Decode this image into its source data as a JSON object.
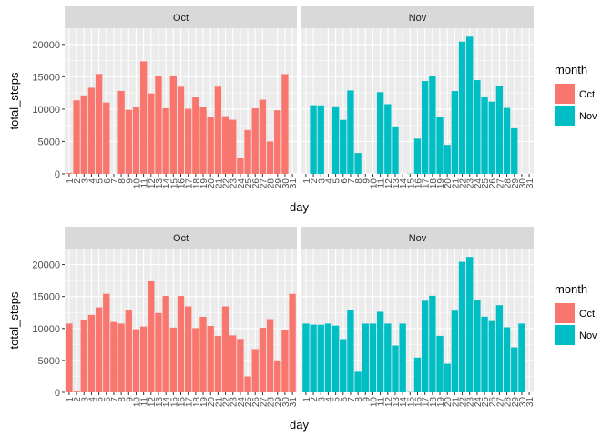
{
  "colors": {
    "oct": "#F8766D",
    "nov": "#00BFC4",
    "panel_bg": "#EBEBEB",
    "strip_bg": "#D9D9D9",
    "grid": "#FFFFFF",
    "text": "#4D4D4D",
    "title_text": "#000000"
  },
  "chart_data": [
    {
      "type": "bar",
      "facets": [
        "Oct",
        "Nov"
      ],
      "xlabel": "day",
      "ylabel": "total_steps",
      "ylim": [
        0,
        22500
      ],
      "yticks": [
        0,
        5000,
        10000,
        15000,
        20000
      ],
      "ytick_labels": [
        "0",
        "5000",
        "10000",
        "15000",
        "20000"
      ],
      "x": [
        1,
        2,
        3,
        4,
        5,
        6,
        7,
        8,
        9,
        10,
        11,
        12,
        13,
        14,
        15,
        16,
        17,
        18,
        19,
        20,
        21,
        22,
        23,
        24,
        25,
        26,
        27,
        28,
        29,
        30,
        31
      ],
      "x_tick_labels": [
        "1",
        "2",
        "3",
        "4",
        "5",
        "6",
        "7",
        "8",
        "9",
        "10",
        "11",
        "12",
        "13",
        "14",
        "15",
        "16",
        "17",
        "18",
        "19",
        "20",
        "21",
        "22",
        "23",
        "24",
        "25",
        "26",
        "27",
        "28",
        "29",
        "30",
        "31"
      ],
      "grid": true,
      "legend": {
        "title": "month",
        "position": "right",
        "entries": [
          "Oct",
          "Nov"
        ]
      },
      "series": [
        {
          "name": "Oct",
          "values": [
            126,
            11352,
            12116,
            13294,
            15420,
            11015,
            0,
            12811,
            9900,
            10304,
            17382,
            12426,
            15098,
            10139,
            15084,
            13452,
            10056,
            11829,
            10395,
            8821,
            13460,
            8918,
            8355,
            2492,
            6778,
            10119,
            11458,
            5018,
            9819,
            15414,
            null
          ]
        },
        {
          "name": "Nov",
          "values": [
            0,
            10600,
            10571,
            0,
            10439,
            8334,
            12883,
            3219,
            0,
            0,
            12608,
            10765,
            7336,
            0,
            41,
            5441,
            14339,
            15110,
            8841,
            4472,
            12787,
            20427,
            21194,
            14478,
            11834,
            11162,
            13646,
            10183,
            7047,
            0,
            null
          ]
        }
      ]
    },
    {
      "type": "bar",
      "facets": [
        "Oct",
        "Nov"
      ],
      "xlabel": "day",
      "ylabel": "total_steps",
      "ylim": [
        0,
        22500
      ],
      "yticks": [
        0,
        5000,
        10000,
        15000,
        20000
      ],
      "ytick_labels": [
        "0",
        "5000",
        "10000",
        "15000",
        "20000"
      ],
      "x": [
        1,
        2,
        3,
        4,
        5,
        6,
        7,
        8,
        9,
        10,
        11,
        12,
        13,
        14,
        15,
        16,
        17,
        18,
        19,
        20,
        21,
        22,
        23,
        24,
        25,
        26,
        27,
        28,
        29,
        30,
        31
      ],
      "x_tick_labels": [
        "1",
        "2",
        "3",
        "4",
        "5",
        "6",
        "7",
        "8",
        "9",
        "10",
        "11",
        "12",
        "13",
        "14",
        "15",
        "16",
        "17",
        "18",
        "19",
        "20",
        "21",
        "22",
        "23",
        "24",
        "25",
        "26",
        "27",
        "28",
        "29",
        "30",
        "31"
      ],
      "grid": true,
      "legend": {
        "title": "month",
        "position": "right",
        "entries": [
          "Oct",
          "Nov"
        ]
      },
      "series": [
        {
          "name": "Oct",
          "values": [
            10766,
            126,
            11352,
            12116,
            13294,
            15420,
            11015,
            10766,
            12811,
            9900,
            10304,
            17382,
            12426,
            15098,
            10139,
            15084,
            13452,
            10056,
            11829,
            10395,
            8821,
            13460,
            8918,
            8355,
            2492,
            6778,
            10119,
            11458,
            5018,
            9819,
            15414
          ]
        },
        {
          "name": "Nov",
          "values": [
            10766,
            10600,
            10571,
            10766,
            10439,
            8334,
            12883,
            3219,
            10766,
            10766,
            12608,
            10765,
            7336,
            10766,
            41,
            5441,
            14339,
            15110,
            8841,
            4472,
            12787,
            20427,
            21194,
            14478,
            11834,
            11162,
            13646,
            10183,
            7047,
            10766,
            null
          ]
        }
      ]
    }
  ]
}
